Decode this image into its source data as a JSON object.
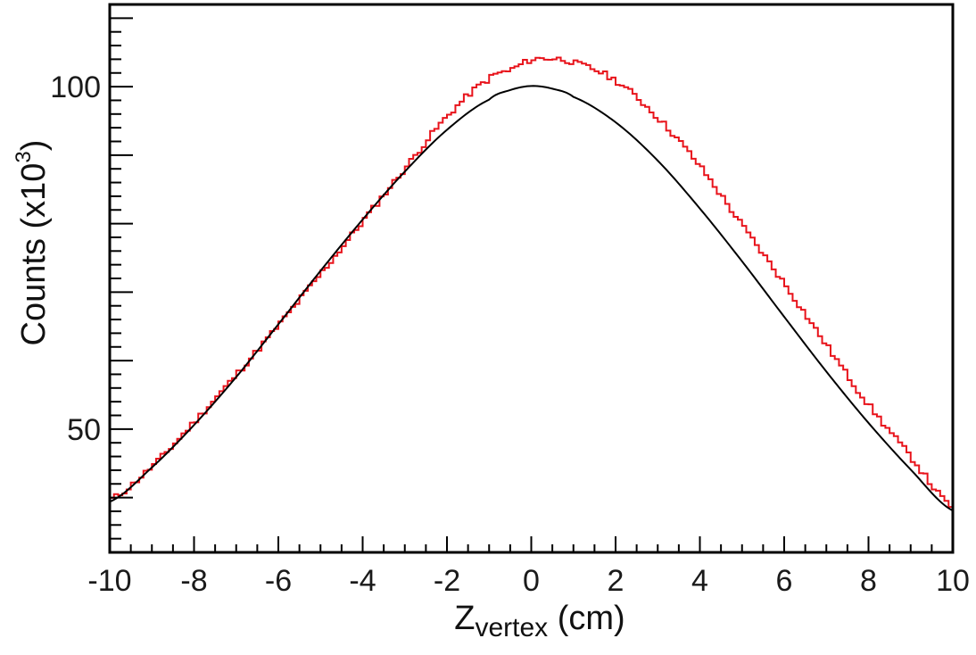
{
  "chart_data": {
    "type": "line",
    "xlabel_main": "Z",
    "xlabel_sub": "vertex",
    "xlabel_unit": " (cm)",
    "ylabel_main": "Counts (x10",
    "ylabel_sup": "3",
    "ylabel_close": ")",
    "xlim": [
      -10,
      10
    ],
    "ylim": [
      32,
      112
    ],
    "x_ticks": [
      -10,
      -8,
      -6,
      -4,
      -2,
      0,
      2,
      4,
      6,
      8,
      10
    ],
    "x_tick_labels": [
      "-10",
      "-8",
      "-6",
      "-4",
      "-2",
      "0",
      "2",
      "4",
      "6",
      "8",
      "10"
    ],
    "y_tick_labels": [
      {
        "value": 50,
        "label": "50"
      },
      {
        "value": 100,
        "label": "100"
      }
    ],
    "y_major_ticks": [
      40,
      50,
      60,
      70,
      80,
      90,
      100,
      110
    ],
    "grid": false,
    "series": [
      {
        "kind": "histogram",
        "color": "#e8131b",
        "x": [
          -10,
          -9,
          -8,
          -7,
          -6,
          -5,
          -4,
          -3,
          -2,
          -1,
          -0.5,
          0,
          0.5,
          1,
          2,
          3,
          4,
          5,
          6,
          7,
          8,
          9,
          10
        ],
        "values": [
          39.7,
          44.5,
          51.0,
          57.9,
          65.1,
          72.6,
          80.3,
          88.0,
          95.6,
          101.1,
          102.4,
          103.9,
          104.1,
          103.5,
          100.9,
          95.5,
          88.4,
          79.8,
          71.3,
          62.3,
          53.6,
          46.0,
          38.6
        ]
      },
      {
        "kind": "fit",
        "color": "#000000",
        "x": [
          -10,
          -9,
          -8,
          -7,
          -6,
          -5,
          -4,
          -3,
          -2,
          -1,
          -0.5,
          0,
          0.5,
          1,
          2,
          3,
          4,
          5,
          6,
          7,
          8,
          9,
          10
        ],
        "values": [
          39.4,
          44.4,
          50.6,
          57.6,
          65.3,
          73.1,
          80.6,
          87.6,
          93.7,
          98.1,
          99.5,
          100.1,
          99.7,
          98.5,
          94.8,
          89.2,
          82.2,
          74.5,
          66.4,
          58.4,
          50.9,
          44.1,
          38.1
        ]
      }
    ]
  }
}
